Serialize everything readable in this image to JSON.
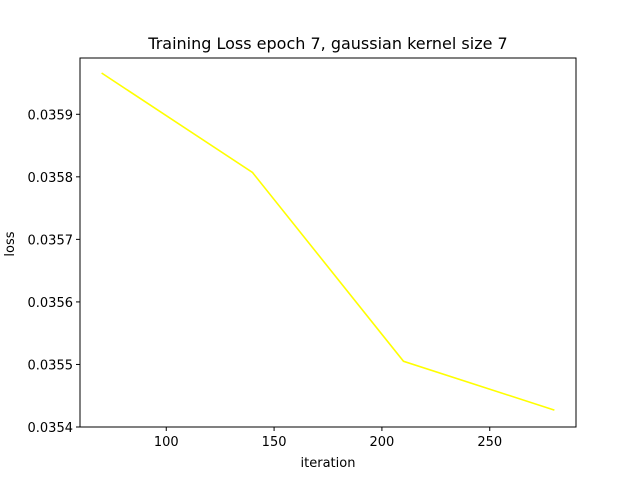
{
  "chart_data": {
    "type": "line",
    "title": "Training Loss epoch 7, gaussian kernel size 7",
    "xlabel": "iteration",
    "ylabel": "loss",
    "xlim": [
      60,
      290
    ],
    "ylim": [
      0.0354,
      0.03599
    ],
    "xticks": [
      100,
      150,
      200,
      250
    ],
    "yticks": [
      0.0354,
      0.0355,
      0.0356,
      0.0357,
      0.0358,
      0.0359
    ],
    "grid": false,
    "series": [
      {
        "color": "#ffff00",
        "x": [
          70,
          140,
          210,
          280
        ],
        "y": [
          0.035966,
          0.035807,
          0.035505,
          0.035427
        ]
      }
    ]
  }
}
